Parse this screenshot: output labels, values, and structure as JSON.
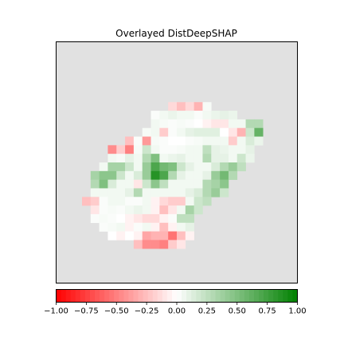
{
  "chart_data": {
    "type": "heatmap",
    "title": "Overlayed DistDeepSHAP",
    "xlabel": "",
    "ylabel": "",
    "grid_size": [
      28,
      28
    ],
    "background_color": "#e1e1e1",
    "colormap": [
      "#ff0000",
      "#ffffff",
      "#008000"
    ],
    "colorbar": {
      "orientation": "horizontal",
      "position": "bottom",
      "range": [
        -1.0,
        1.0
      ],
      "ticks": [
        -1.0,
        -0.75,
        -0.5,
        -0.25,
        0.0,
        0.25,
        0.5,
        0.75,
        1.0
      ],
      "tick_labels": [
        "−1.00",
        "−0.75",
        "−0.50",
        "−0.25",
        "0.00",
        "0.25",
        "0.50",
        "0.75",
        "1.00"
      ]
    },
    "cells": [
      [
        7,
        13,
        -0.15
      ],
      [
        7,
        14,
        -0.25
      ],
      [
        7,
        15,
        -0.15
      ],
      [
        7,
        16,
        -0.3
      ],
      [
        7,
        17,
        0.03
      ],
      [
        8,
        11,
        0.02
      ],
      [
        8,
        12,
        0.05
      ],
      [
        8,
        13,
        0.08
      ],
      [
        8,
        14,
        0.05
      ],
      [
        8,
        15,
        0.05
      ],
      [
        8,
        16,
        0.02
      ],
      [
        8,
        17,
        0.05
      ],
      [
        8,
        18,
        0.08
      ],
      [
        8,
        19,
        0.1
      ],
      [
        8,
        20,
        0.08
      ],
      [
        9,
        11,
        0.05
      ],
      [
        9,
        12,
        0.03
      ],
      [
        9,
        13,
        0.02
      ],
      [
        9,
        14,
        0.03
      ],
      [
        9,
        15,
        0.02
      ],
      [
        9,
        16,
        0.0
      ],
      [
        9,
        17,
        -0.05
      ],
      [
        9,
        18,
        -0.1
      ],
      [
        9,
        19,
        -0.1
      ],
      [
        9,
        20,
        0.05
      ],
      [
        9,
        21,
        0.05
      ],
      [
        9,
        22,
        0.3
      ],
      [
        9,
        23,
        0.3
      ],
      [
        10,
        10,
        0.03
      ],
      [
        10,
        11,
        0.05
      ],
      [
        10,
        12,
        -0.2
      ],
      [
        10,
        13,
        0.02
      ],
      [
        10,
        14,
        0.05
      ],
      [
        10,
        15,
        0.1
      ],
      [
        10,
        16,
        0.12
      ],
      [
        10,
        17,
        0.12
      ],
      [
        10,
        18,
        0.12
      ],
      [
        10,
        19,
        0.0
      ],
      [
        10,
        20,
        -0.1
      ],
      [
        10,
        21,
        -0.3
      ],
      [
        10,
        22,
        0.2
      ],
      [
        10,
        23,
        0.6
      ],
      [
        11,
        8,
        -0.25
      ],
      [
        11,
        9,
        0.02
      ],
      [
        11,
        10,
        -0.4
      ],
      [
        11,
        11,
        0.03
      ],
      [
        11,
        12,
        0.02
      ],
      [
        11,
        13,
        0.0
      ],
      [
        11,
        14,
        0.0
      ],
      [
        11,
        15,
        0.02
      ],
      [
        11,
        16,
        0.03
      ],
      [
        11,
        17,
        0.05
      ],
      [
        11,
        18,
        0.05
      ],
      [
        11,
        19,
        0.05
      ],
      [
        11,
        20,
        -0.2
      ],
      [
        11,
        21,
        0.05
      ],
      [
        11,
        22,
        0.15
      ],
      [
        11,
        23,
        0.08
      ],
      [
        12,
        6,
        -0.45
      ],
      [
        12,
        7,
        -0.2
      ],
      [
        12,
        8,
        -0.5
      ],
      [
        12,
        9,
        0.03
      ],
      [
        12,
        10,
        0.2
      ],
      [
        12,
        11,
        0.05
      ],
      [
        12,
        12,
        0.02
      ],
      [
        12,
        13,
        0.02
      ],
      [
        12,
        14,
        0.03
      ],
      [
        12,
        15,
        0.05
      ],
      [
        12,
        16,
        0.05
      ],
      [
        12,
        17,
        0.25
      ],
      [
        12,
        18,
        0.1
      ],
      [
        12,
        19,
        0.08
      ],
      [
        12,
        20,
        0.05
      ],
      [
        12,
        21,
        0.05
      ],
      [
        12,
        22,
        0.1
      ],
      [
        13,
        6,
        0.05
      ],
      [
        13,
        7,
        0.03
      ],
      [
        13,
        8,
        0.1
      ],
      [
        13,
        9,
        0.05
      ],
      [
        13,
        10,
        0.3
      ],
      [
        13,
        11,
        0.5
      ],
      [
        13,
        12,
        0.05
      ],
      [
        13,
        13,
        0.08
      ],
      [
        13,
        14,
        0.1
      ],
      [
        13,
        15,
        0.05
      ],
      [
        13,
        16,
        0.05
      ],
      [
        13,
        17,
        0.3
      ],
      [
        13,
        18,
        0.1
      ],
      [
        13,
        19,
        0.1
      ],
      [
        13,
        20,
        0.05
      ],
      [
        13,
        21,
        0.2
      ],
      [
        13,
        22,
        0.08
      ],
      [
        14,
        5,
        0.05
      ],
      [
        14,
        6,
        0.35
      ],
      [
        14,
        7,
        0.35
      ],
      [
        14,
        8,
        0.2
      ],
      [
        14,
        9,
        0.05
      ],
      [
        14,
        10,
        0.4
      ],
      [
        14,
        11,
        0.7
      ],
      [
        14,
        12,
        0.55
      ],
      [
        14,
        13,
        0.5
      ],
      [
        14,
        14,
        0.2
      ],
      [
        14,
        15,
        0.1
      ],
      [
        14,
        16,
        0.05
      ],
      [
        14,
        17,
        0.05
      ],
      [
        14,
        18,
        0.15
      ],
      [
        14,
        19,
        0.3
      ],
      [
        14,
        20,
        0.4
      ],
      [
        14,
        21,
        0.25
      ],
      [
        15,
        4,
        0.35
      ],
      [
        15,
        5,
        0.45
      ],
      [
        15,
        6,
        0.45
      ],
      [
        15,
        7,
        0.2
      ],
      [
        15,
        8,
        0.05
      ],
      [
        15,
        9,
        0.15
      ],
      [
        15,
        10,
        0.4
      ],
      [
        15,
        11,
        0.85
      ],
      [
        15,
        12,
        0.7
      ],
      [
        15,
        13,
        0.3
      ],
      [
        15,
        14,
        0.1
      ],
      [
        15,
        15,
        0.05
      ],
      [
        15,
        16,
        0.05
      ],
      [
        15,
        17,
        0.1
      ],
      [
        15,
        18,
        0.4
      ],
      [
        15,
        19,
        0.55
      ],
      [
        15,
        20,
        0.3
      ],
      [
        16,
        4,
        0.3
      ],
      [
        16,
        5,
        0.5
      ],
      [
        16,
        6,
        0.15
      ],
      [
        16,
        7,
        0.05
      ],
      [
        16,
        8,
        0.05
      ],
      [
        16,
        9,
        -0.1
      ],
      [
        16,
        10,
        0.2
      ],
      [
        16,
        11,
        0.45
      ],
      [
        16,
        12,
        0.25
      ],
      [
        16,
        13,
        0.05
      ],
      [
        16,
        14,
        0.05
      ],
      [
        16,
        15,
        0.05
      ],
      [
        16,
        16,
        0.05
      ],
      [
        16,
        17,
        0.3
      ],
      [
        16,
        18,
        0.35
      ],
      [
        16,
        19,
        0.45
      ],
      [
        17,
        4,
        0.05
      ],
      [
        17,
        5,
        0.05
      ],
      [
        17,
        6,
        0.05
      ],
      [
        17,
        7,
        0.05
      ],
      [
        17,
        8,
        0.1
      ],
      [
        17,
        9,
        0.3
      ],
      [
        17,
        10,
        0.05
      ],
      [
        17,
        11,
        0.05
      ],
      [
        17,
        12,
        0.05
      ],
      [
        17,
        13,
        0.05
      ],
      [
        17,
        14,
        0.05
      ],
      [
        17,
        15,
        0.1
      ],
      [
        17,
        16,
        0.15
      ],
      [
        17,
        17,
        0.3
      ],
      [
        17,
        18,
        0.4
      ],
      [
        17,
        19,
        0.2
      ],
      [
        18,
        3,
        -0.25
      ],
      [
        18,
        4,
        -0.2
      ],
      [
        18,
        5,
        0.02
      ],
      [
        18,
        6,
        0.05
      ],
      [
        18,
        7,
        0.05
      ],
      [
        18,
        8,
        0.02
      ],
      [
        18,
        9,
        0.02
      ],
      [
        18,
        10,
        0.05
      ],
      [
        18,
        11,
        -0.05
      ],
      [
        18,
        12,
        -0.15
      ],
      [
        18,
        13,
        -0.2
      ],
      [
        18,
        14,
        -0.2
      ],
      [
        18,
        15,
        0.05
      ],
      [
        18,
        16,
        0.2
      ],
      [
        18,
        17,
        0.25
      ],
      [
        19,
        4,
        -0.1
      ],
      [
        19,
        5,
        0.02
      ],
      [
        19,
        6,
        0.03
      ],
      [
        19,
        7,
        0.02
      ],
      [
        19,
        8,
        0.05
      ],
      [
        19,
        9,
        0.08
      ],
      [
        19,
        10,
        0.05
      ],
      [
        19,
        11,
        -0.05
      ],
      [
        19,
        12,
        -0.25
      ],
      [
        19,
        13,
        -0.1
      ],
      [
        19,
        14,
        0.05
      ],
      [
        19,
        15,
        0.35
      ],
      [
        19,
        16,
        0.2
      ],
      [
        20,
        4,
        0.02
      ],
      [
        20,
        5,
        0.03
      ],
      [
        20,
        6,
        0.02
      ],
      [
        20,
        7,
        0.0
      ],
      [
        20,
        8,
        -0.05
      ],
      [
        20,
        9,
        -0.1
      ],
      [
        20,
        10,
        -0.15
      ],
      [
        20,
        11,
        -0.15
      ],
      [
        20,
        12,
        -0.05
      ],
      [
        20,
        13,
        0.02
      ],
      [
        20,
        14,
        0.25
      ],
      [
        20,
        15,
        0.25
      ],
      [
        21,
        5,
        0.02
      ],
      [
        21,
        6,
        0.03
      ],
      [
        21,
        7,
        0.05
      ],
      [
        21,
        8,
        -0.05
      ],
      [
        21,
        9,
        0.02
      ],
      [
        21,
        10,
        0.05
      ],
      [
        21,
        11,
        -0.05
      ],
      [
        21,
        12,
        -0.25
      ],
      [
        21,
        13,
        -0.05
      ],
      [
        21,
        14,
        0.05
      ],
      [
        21,
        15,
        0.1
      ],
      [
        22,
        6,
        0.0
      ],
      [
        22,
        7,
        -0.05
      ],
      [
        22,
        8,
        0.0
      ],
      [
        22,
        9,
        -0.05
      ],
      [
        22,
        10,
        -0.35
      ],
      [
        22,
        11,
        -0.3
      ],
      [
        22,
        12,
        -0.3
      ],
      [
        22,
        13,
        -0.55
      ],
      [
        22,
        14,
        -0.25
      ],
      [
        22,
        15,
        -0.05
      ],
      [
        23,
        9,
        -0.25
      ],
      [
        23,
        10,
        -0.45
      ],
      [
        23,
        11,
        -0.45
      ],
      [
        23,
        12,
        -0.5
      ],
      [
        23,
        13,
        -0.2
      ],
      [
        23,
        14,
        -0.1
      ]
    ]
  }
}
